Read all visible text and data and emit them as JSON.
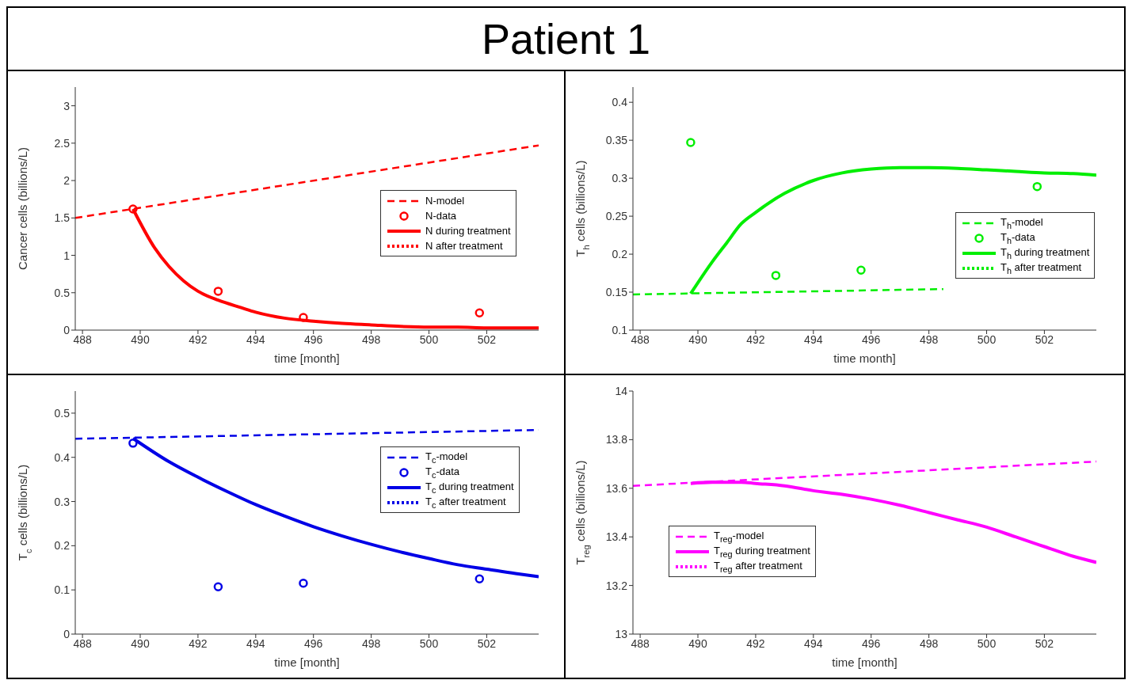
{
  "chart_data": [
    {
      "type": "line",
      "title": "Patient 1",
      "xlabel": "time [month]",
      "ylabel": "Cancer cells (billions/L)",
      "xlim": [
        487.75,
        503.8
      ],
      "ylim": [
        0,
        3.25
      ],
      "xticks": [
        488,
        490,
        492,
        494,
        496,
        498,
        500,
        502
      ],
      "yticks": [
        0,
        0.5,
        1,
        1.5,
        2,
        2.5,
        3
      ],
      "legend": "right",
      "series": [
        {
          "name": "N-model",
          "color": "#ff0000",
          "line_style": "dashed",
          "x": [
            487.75,
            503.8
          ],
          "values": [
            1.5,
            2.47
          ]
        },
        {
          "name": "N-data",
          "color": "#ff0000",
          "type": "scatter",
          "marker": "circle",
          "x": [
            489.75,
            492.7,
            495.65,
            501.75
          ],
          "values": [
            1.62,
            0.52,
            0.17,
            0.23
          ]
        },
        {
          "name": "N during treatment",
          "color": "#ff0000",
          "line_style": "solid",
          "x": [
            489.75,
            490.5,
            491,
            491.5,
            492,
            492.7,
            493.5,
            494,
            495,
            496,
            497,
            498,
            499,
            500,
            501,
            502,
            503.8
          ],
          "values": [
            1.62,
            1.1,
            0.85,
            0.66,
            0.52,
            0.4,
            0.3,
            0.24,
            0.16,
            0.12,
            0.09,
            0.07,
            0.05,
            0.04,
            0.04,
            0.03,
            0.03
          ]
        },
        {
          "name": "N after treatment",
          "color": "#ff0000",
          "line_style": "dotted"
        }
      ]
    },
    {
      "type": "line",
      "xlabel": "time month]",
      "ylabel": "T$_{h}$ cells (billions/L)",
      "xlim": [
        487.75,
        503.8
      ],
      "ylim": [
        0.1,
        0.42
      ],
      "xticks": [
        488,
        490,
        492,
        494,
        496,
        498,
        500,
        502
      ],
      "yticks": [
        0.1,
        0.15,
        0.2,
        0.25,
        0.3,
        0.35,
        0.4
      ],
      "legend": "bottom right",
      "series": [
        {
          "name": "T$_{h}$-model",
          "color": "#00ee00",
          "line_style": "dashed",
          "x": [
            487.75,
            498.5
          ],
          "values": [
            0.147,
            0.154
          ]
        },
        {
          "name": "T$_{h}$-data",
          "color": "#00ee00",
          "type": "scatter",
          "marker": "circle",
          "x": [
            489.75,
            492.7,
            495.65,
            501.75
          ],
          "values": [
            0.347,
            0.172,
            0.179,
            0.289
          ]
        },
        {
          "name": "T$_{h}$ during treatment",
          "color": "#00ee00",
          "line_style": "solid",
          "x": [
            489.75,
            490.5,
            491,
            491.5,
            492,
            493,
            494,
            495,
            496,
            497,
            498,
            499,
            500,
            501,
            502,
            503,
            503.8
          ],
          "values": [
            0.148,
            0.19,
            0.215,
            0.24,
            0.255,
            0.28,
            0.297,
            0.307,
            0.312,
            0.314,
            0.314,
            0.313,
            0.311,
            0.309,
            0.307,
            0.306,
            0.304
          ]
        },
        {
          "name": "T$_{h}$ after treatment",
          "color": "#00ee00",
          "line_style": "dotted"
        }
      ]
    },
    {
      "type": "line",
      "xlabel": "time [month]",
      "ylabel": "T$_{c}$ cells (billions/L)",
      "xlim": [
        487.75,
        503.8
      ],
      "ylim": [
        0,
        0.55
      ],
      "xticks": [
        488,
        490,
        492,
        494,
        496,
        498,
        500,
        502
      ],
      "yticks": [
        0,
        0.1,
        0.2,
        0.3,
        0.4,
        0.5
      ],
      "legend": "top right",
      "series": [
        {
          "name": "T$_{c}$-model",
          "color": "#0000e6",
          "line_style": "dashed",
          "x": [
            487.75,
            503.8
          ],
          "values": [
            0.442,
            0.462
          ]
        },
        {
          "name": "T$_{c}$-data",
          "color": "#0000e6",
          "type": "scatter",
          "marker": "circle",
          "x": [
            489.75,
            492.7,
            495.65,
            501.75
          ],
          "values": [
            0.432,
            0.107,
            0.115,
            0.125
          ]
        },
        {
          "name": "T$_{c}$ during treatment",
          "color": "#0000e6",
          "line_style": "solid",
          "x": [
            489.75,
            491,
            492,
            493,
            494,
            495,
            496,
            497,
            498,
            499,
            500,
            501,
            502,
            503,
            503.8
          ],
          "values": [
            0.443,
            0.39,
            0.355,
            0.323,
            0.293,
            0.267,
            0.243,
            0.222,
            0.203,
            0.186,
            0.171,
            0.157,
            0.147,
            0.137,
            0.13
          ]
        },
        {
          "name": "T$_{c}$ after treatment",
          "color": "#0000e6",
          "line_style": "dotted"
        }
      ]
    },
    {
      "type": "line",
      "xlabel": "time [month]",
      "ylabel": "T$_{reg}$ cells (billions/L)",
      "xlim": [
        487.75,
        503.8
      ],
      "ylim": [
        13,
        14
      ],
      "xticks": [
        488,
        490,
        492,
        494,
        496,
        498,
        500,
        502
      ],
      "yticks": [
        13,
        13.2,
        13.4,
        13.6,
        13.8,
        14
      ],
      "legend": "left",
      "series": [
        {
          "name": "T$_{reg}$-model",
          "color": "#ff00ff",
          "line_style": "dashed",
          "x": [
            487.75,
            503.8
          ],
          "values": [
            13.61,
            13.71
          ]
        },
        {
          "name": "T$_{reg}$ during treatment",
          "color": "#ff00ff",
          "line_style": "solid",
          "x": [
            489.75,
            490.5,
            491.5,
            492,
            493,
            494,
            495,
            496,
            497,
            498,
            499,
            500,
            501,
            502,
            503,
            503.8
          ],
          "values": [
            13.62,
            13.625,
            13.625,
            13.62,
            13.61,
            13.59,
            13.575,
            13.555,
            13.53,
            13.5,
            13.47,
            13.44,
            13.4,
            13.36,
            13.32,
            13.295
          ]
        },
        {
          "name": "T$_{reg}$ after treatment",
          "color": "#ff00ff",
          "line_style": "dotted"
        }
      ]
    }
  ]
}
